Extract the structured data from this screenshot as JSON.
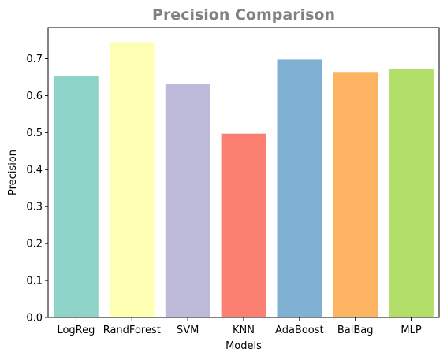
{
  "chart_data": {
    "type": "bar",
    "title": "Precision Comparison",
    "xlabel": "Models",
    "ylabel": "Precision",
    "categories": [
      "LogReg",
      "RandForest",
      "SVM",
      "KNN",
      "AdaBoost",
      "BalBag",
      "MLP"
    ],
    "values": [
      0.652,
      0.745,
      0.632,
      0.497,
      0.698,
      0.662,
      0.673
    ],
    "colors": [
      "#8dd3c7",
      "#ffffb3",
      "#bebada",
      "#fb8072",
      "#80b1d3",
      "#fdb462",
      "#b3de69"
    ],
    "ylim": [
      0,
      0.784
    ],
    "yticks": [
      "0.0",
      "0.1",
      "0.2",
      "0.3",
      "0.4",
      "0.5",
      "0.6",
      "0.7"
    ],
    "grid": false,
    "legend": "none"
  }
}
